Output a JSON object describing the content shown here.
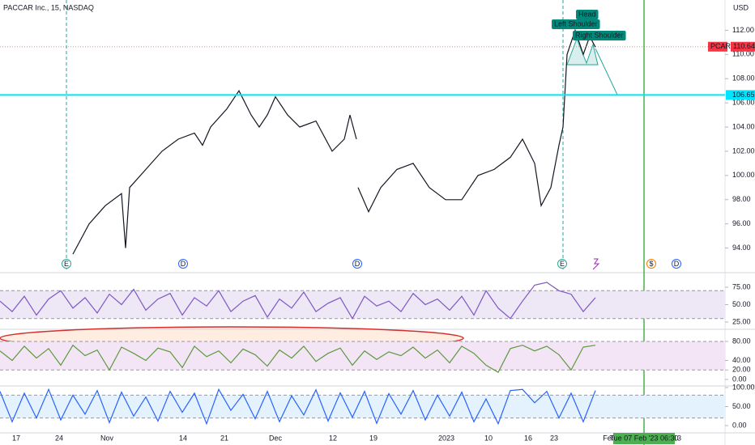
{
  "header": {
    "title": "PACCAR Inc., 15, NASDAQ",
    "currency": "USD"
  },
  "chart_data": [
    {
      "type": "line",
      "color": "#131722",
      "xlim": [
        0,
        895
      ],
      "ylim": [
        92.1,
        114.5
      ],
      "yticks": [
        {
          "value": 94,
          "label": "94.00"
        },
        {
          "value": 96,
          "label": "96.00"
        },
        {
          "value": 98,
          "label": "98.00"
        },
        {
          "value": 100,
          "label": "100.00"
        },
        {
          "value": 102,
          "label": "102.00"
        },
        {
          "value": 104,
          "label": "104.00"
        },
        {
          "value": 106,
          "label": "106.00"
        },
        {
          "value": 108,
          "label": "108.00"
        },
        {
          "value": 110,
          "label": "110.00"
        },
        {
          "value": 112,
          "label": "112.00"
        }
      ],
      "xticks": [
        {
          "value": 20,
          "label": "17"
        },
        {
          "value": 73,
          "label": "24"
        },
        {
          "value": 132,
          "label": "Nov"
        },
        {
          "value": 226,
          "label": "14"
        },
        {
          "value": 277,
          "label": "21"
        },
        {
          "value": 340,
          "label": "Dec"
        },
        {
          "value": 411,
          "label": "12"
        },
        {
          "value": 461,
          "label": "19"
        },
        {
          "value": 551,
          "label": "2023"
        },
        {
          "value": 603,
          "label": "10"
        },
        {
          "value": 652,
          "label": "16"
        },
        {
          "value": 684,
          "label": "23"
        },
        {
          "value": 752,
          "label": "Feb"
        },
        {
          "value": 836,
          "label": "13"
        }
      ],
      "x": [
        90,
        110,
        130,
        150,
        155,
        160,
        180,
        200,
        220,
        240,
        250,
        260,
        280,
        295,
        310,
        320,
        330,
        340,
        355,
        370,
        390,
        410,
        425,
        432,
        440,
        441,
        442,
        455,
        470,
        490,
        510,
        530,
        550,
        570,
        590,
        610,
        630,
        645,
        660,
        668,
        680,
        690,
        695,
        700,
        710,
        720,
        728,
        735
      ],
      "values": [
        93.5,
        96,
        97.5,
        98.5,
        94,
        99,
        100.5,
        102,
        103,
        103.5,
        102.5,
        104,
        105.5,
        107,
        105,
        104,
        105,
        106.5,
        105,
        104,
        104.5,
        102,
        103,
        105,
        103,
        null,
        99,
        97,
        99,
        100.5,
        101,
        99,
        98,
        98,
        100,
        100.5,
        101.5,
        103,
        101,
        97.5,
        99,
        102.5,
        104,
        110,
        112,
        110,
        111.5,
        110.6
      ],
      "last_price": {
        "symbol": "PCAR",
        "value": 110.64,
        "label": "110.64"
      },
      "hline": {
        "value": 106.65,
        "label": "106.65",
        "color": "#00e5ff"
      },
      "annotations": [
        "Head",
        "Left Shoulder",
        "Right Shoulder"
      ],
      "events": [
        {
          "x": 82,
          "label": "E",
          "color": "#26a69a"
        },
        {
          "x": 226,
          "label": "D",
          "color": "#2962ff"
        },
        {
          "x": 441,
          "label": "D",
          "color": "#2962ff"
        },
        {
          "x": 694,
          "label": "E",
          "color": "#26a69a"
        },
        {
          "x": 804,
          "label": "$",
          "color": "#f57c00"
        },
        {
          "x": 835,
          "label": "D",
          "color": "#2962ff"
        }
      ]
    },
    {
      "type": "line",
      "color": "#7e57c2",
      "ylim": [
        16.9,
        86.6
      ],
      "bands": [
        30,
        70
      ],
      "band_color": "#ede7f6",
      "yticks": [
        {
          "value": 25,
          "label": "25.00"
        },
        {
          "value": 50,
          "label": "50.00"
        },
        {
          "value": 75,
          "label": "75.00"
        }
      ],
      "values": [
        55,
        40,
        62,
        35,
        58,
        70,
        45,
        60,
        38,
        65,
        50,
        72,
        42,
        58,
        66,
        35,
        60,
        48,
        70,
        40,
        55,
        63,
        32,
        58,
        45,
        68,
        40,
        52,
        60,
        30,
        62,
        48,
        55,
        40,
        66,
        50,
        58,
        42,
        62,
        35,
        70,
        45,
        30,
        55,
        78,
        82,
        70,
        65,
        40,
        60
      ]
    },
    {
      "type": "line",
      "color": "#5b9a3c",
      "ylim": [
        -10.2,
        100.4
      ],
      "bands": [
        20,
        80
      ],
      "band_color": "#f3e5f5",
      "yticks": [
        {
          "value": 0,
          "label": "0.00"
        },
        {
          "value": 20,
          "label": "20.00"
        },
        {
          "value": 40,
          "label": "40.00"
        },
        {
          "value": 80,
          "label": "80.00"
        }
      ],
      "values": [
        60,
        40,
        70,
        45,
        65,
        30,
        72,
        50,
        62,
        20,
        68,
        55,
        40,
        66,
        58,
        25,
        70,
        48,
        60,
        35,
        64,
        52,
        28,
        62,
        45,
        70,
        38,
        55,
        66,
        30,
        60,
        42,
        58,
        50,
        68,
        45,
        62,
        35,
        70,
        55,
        30,
        15,
        65,
        72,
        60,
        70,
        52,
        20,
        68,
        72
      ]
    },
    {
      "type": "line",
      "color": "#2962ff",
      "ylim": [
        -19,
        102
      ],
      "bands": [
        20,
        80
      ],
      "band_color": "#e3f2fd",
      "yticks": [
        {
          "value": 0,
          "label": "0.00"
        },
        {
          "value": 50,
          "label": "50.00"
        },
        {
          "value": 100,
          "label": "100.00"
        }
      ],
      "values": [
        90,
        10,
        85,
        20,
        95,
        15,
        80,
        30,
        92,
        8,
        88,
        25,
        75,
        12,
        90,
        35,
        85,
        5,
        95,
        40,
        82,
        18,
        90,
        10,
        78,
        28,
        94,
        12,
        86,
        22,
        90,
        6,
        84,
        30,
        92,
        15,
        80,
        25,
        88,
        10,
        70,
        5,
        92,
        95,
        60,
        90,
        20,
        85,
        10,
        92
      ]
    }
  ],
  "crosshair": {
    "label": "Tue 07 Feb '23  06:30"
  }
}
